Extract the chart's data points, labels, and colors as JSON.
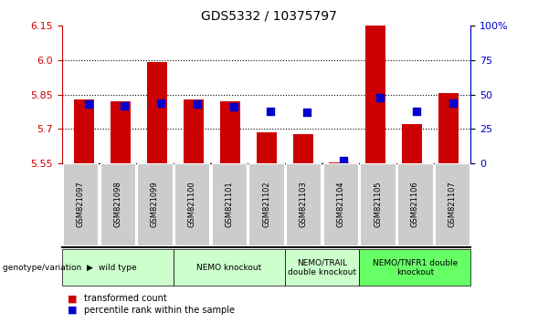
{
  "title": "GDS5332 / 10375797",
  "samples": [
    "GSM821097",
    "GSM821098",
    "GSM821099",
    "GSM821100",
    "GSM821101",
    "GSM821102",
    "GSM821103",
    "GSM821104",
    "GSM821105",
    "GSM821106",
    "GSM821107"
  ],
  "transformed_count": [
    5.83,
    5.82,
    5.99,
    5.83,
    5.82,
    5.685,
    5.675,
    5.555,
    6.15,
    5.72,
    5.855
  ],
  "percentile_rank": [
    43,
    42,
    44,
    43,
    41,
    38,
    37,
    2,
    48,
    38,
    44
  ],
  "ylim_left": [
    5.55,
    6.15
  ],
  "ylim_right": [
    0,
    100
  ],
  "yticks_left": [
    5.55,
    5.7,
    5.85,
    6.0,
    6.15
  ],
  "yticks_right": [
    0,
    25,
    50,
    75,
    100
  ],
  "baseline": 5.55,
  "bar_color": "#cc0000",
  "dot_color": "#0000cc",
  "grid_lines": [
    5.7,
    5.85,
    6.0
  ],
  "groups": [
    {
      "label": "wild type",
      "start": 0,
      "end": 2,
      "color": "#ccffcc"
    },
    {
      "label": "NEMO knockout",
      "start": 3,
      "end": 5,
      "color": "#ccffcc"
    },
    {
      "label": "NEMO/TRAIL\ndouble knockout",
      "start": 6,
      "end": 7,
      "color": "#ccffcc"
    },
    {
      "label": "NEMO/TNFR1 double\nknockout",
      "start": 8,
      "end": 10,
      "color": "#66ff66"
    }
  ],
  "legend_items": [
    {
      "label": "transformed count",
      "color": "#cc0000"
    },
    {
      "label": "percentile rank within the sample",
      "color": "#0000cc"
    }
  ],
  "left_axis_color": "#cc0000",
  "right_axis_color": "#0000cc",
  "bar_width": 0.55,
  "dot_size": 35,
  "fig_width": 5.89,
  "fig_height": 3.54,
  "sample_box_color": "#cccccc",
  "genotype_label": "genotype/variation"
}
